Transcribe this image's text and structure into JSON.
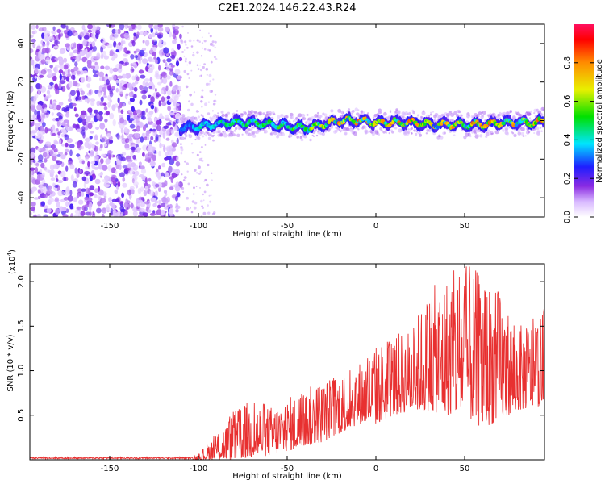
{
  "title": "C2E1.2024.146.22.43.R24",
  "chart_data": [
    {
      "type": "heatmap",
      "xlabel": "Height of straight line (km)",
      "ylabel": "Frequency (Hz)",
      "xlim": [
        -195,
        95
      ],
      "ylim": [
        -50,
        50
      ],
      "x_ticks": [
        -150,
        -100,
        -50,
        0,
        50
      ],
      "y_ticks": [
        -40,
        -20,
        0,
        20,
        40
      ],
      "colorbar": {
        "label": "Normalized spectral amplitude",
        "range": [
          0.0,
          1.0
        ],
        "ticks": [
          "0.0",
          "0.2",
          "0.4",
          "0.6",
          "0.8"
        ]
      },
      "noise_region_x": [
        -195,
        -110
      ],
      "ridge": {
        "x": [
          -110,
          -100,
          -90,
          -80,
          -70,
          -60,
          -50,
          -40,
          -30,
          -20,
          -10,
          0,
          10,
          20,
          30,
          40,
          50,
          60,
          70,
          80,
          90,
          95
        ],
        "freq": [
          -4,
          -3,
          -2,
          -1,
          -1,
          -2,
          -3,
          -4,
          -2,
          0,
          0,
          -1,
          -1,
          -1,
          -2,
          -2,
          -2,
          -2,
          -1,
          -1,
          -1,
          0
        ],
        "peak_amplitude": [
          0.3,
          0.45,
          0.5,
          0.55,
          0.55,
          0.55,
          0.6,
          0.6,
          0.75,
          0.85,
          0.85,
          0.8,
          0.85,
          0.85,
          0.75,
          0.8,
          0.85,
          0.85,
          0.85,
          0.8,
          0.85,
          0.85
        ],
        "bandwidth_hz": 4
      }
    },
    {
      "type": "line",
      "xlabel": "Height of straight line (km)",
      "ylabel": "SNR (10 * v/v)",
      "y_scale_label": "(x10^4)",
      "xlim": [
        -195,
        95
      ],
      "ylim": [
        0,
        2.2
      ],
      "x_ticks": [
        -150,
        -100,
        -50,
        0,
        50
      ],
      "y_ticks": [
        0.5,
        1.0,
        1.5,
        2.0
      ],
      "line_color": "#e83030",
      "envelope": {
        "x": [
          -195,
          -110,
          -100,
          -90,
          -80,
          -70,
          -60,
          -50,
          -40,
          -30,
          -20,
          -10,
          0,
          10,
          20,
          30,
          40,
          50,
          60,
          70,
          80,
          90,
          95
        ],
        "upper": [
          0.03,
          0.03,
          0.06,
          0.3,
          0.55,
          0.7,
          0.6,
          0.7,
          0.8,
          0.9,
          1.0,
          1.1,
          1.3,
          1.4,
          1.5,
          1.9,
          2.1,
          2.2,
          2.1,
          1.9,
          1.5,
          1.6,
          1.7
        ],
        "lower": [
          0.0,
          0.0,
          0.0,
          0.0,
          0.0,
          0.02,
          0.05,
          0.1,
          0.15,
          0.2,
          0.3,
          0.4,
          0.4,
          0.5,
          0.55,
          0.55,
          0.5,
          0.5,
          0.35,
          0.45,
          0.55,
          0.6,
          0.6
        ]
      }
    }
  ]
}
